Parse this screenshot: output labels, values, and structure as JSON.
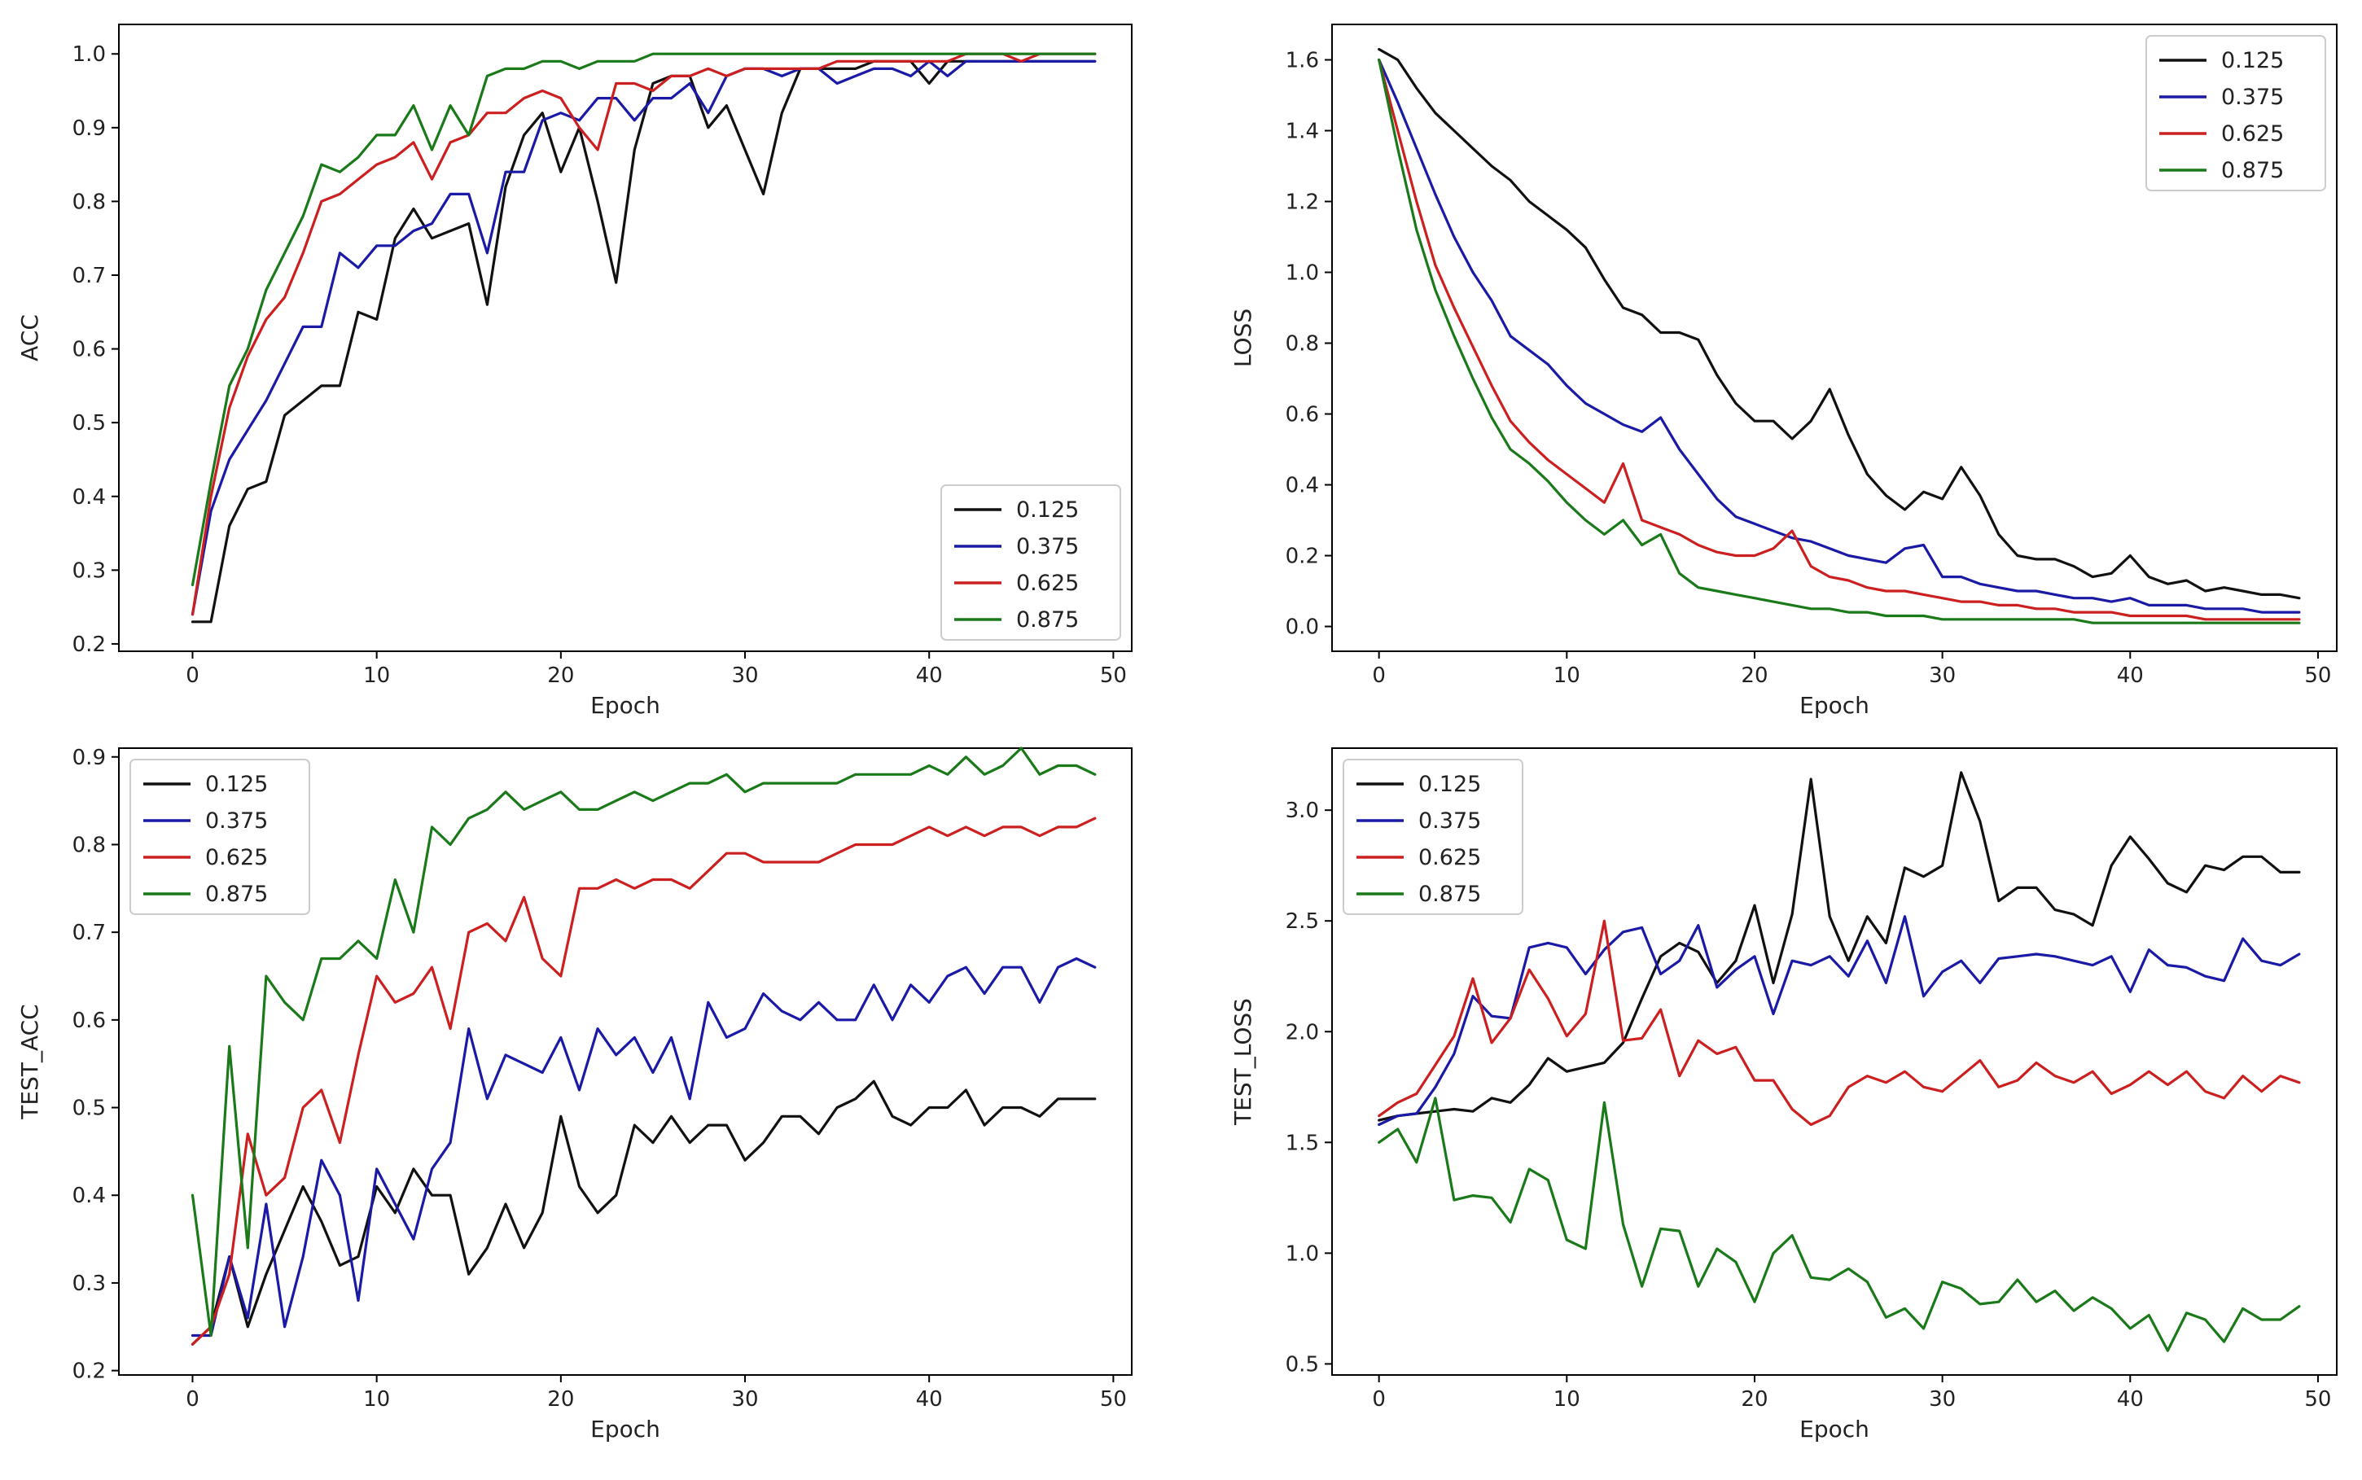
{
  "colors": {
    "c0.125": "#111111",
    "c0.375": "#1a1aa6",
    "c0.625": "#cc2020",
    "c0.875": "#1a7a1a"
  },
  "chart_data": [
    {
      "type": "line",
      "position": "top-left",
      "xlabel": "Epoch",
      "ylabel": "ACC",
      "xlim": [
        -4,
        51
      ],
      "ylim": [
        0.19,
        1.04
      ],
      "xticks": [
        0,
        10,
        20,
        30,
        40,
        50
      ],
      "yticks": [
        0.2,
        0.3,
        0.4,
        0.5,
        0.6,
        0.7,
        0.8,
        0.9,
        1.0
      ],
      "ytick_labels": [
        "0.2",
        "0.3",
        "0.4",
        "0.5",
        "0.6",
        "0.7",
        "0.8",
        "0.9",
        "1.0"
      ],
      "legend_loc": "bottom-right",
      "series": [
        {
          "name": "0.125",
          "color": "#111111",
          "values": [
            0.23,
            0.23,
            0.36,
            0.41,
            0.42,
            0.51,
            0.53,
            0.55,
            0.55,
            0.65,
            0.64,
            0.75,
            0.79,
            0.75,
            0.76,
            0.77,
            0.66,
            0.82,
            0.89,
            0.92,
            0.84,
            0.9,
            0.8,
            0.69,
            0.87,
            0.96,
            0.97,
            0.97,
            0.9,
            0.93,
            0.87,
            0.81,
            0.92,
            0.98,
            0.98,
            0.98,
            0.98,
            0.99,
            0.99,
            0.99,
            0.96,
            0.99,
            0.99,
            0.99,
            0.99,
            0.99,
            0.99,
            0.99,
            0.99,
            0.99
          ]
        },
        {
          "name": "0.375",
          "color": "#1a1aa6",
          "values": [
            0.24,
            0.38,
            0.45,
            0.49,
            0.53,
            0.58,
            0.63,
            0.63,
            0.73,
            0.71,
            0.74,
            0.74,
            0.76,
            0.77,
            0.81,
            0.81,
            0.73,
            0.84,
            0.84,
            0.91,
            0.92,
            0.91,
            0.94,
            0.94,
            0.91,
            0.94,
            0.94,
            0.96,
            0.92,
            0.97,
            0.98,
            0.98,
            0.97,
            0.98,
            0.98,
            0.96,
            0.97,
            0.98,
            0.98,
            0.97,
            0.99,
            0.97,
            0.99,
            0.99,
            0.99,
            0.99,
            0.99,
            0.99,
            0.99,
            0.99
          ]
        },
        {
          "name": "0.625",
          "color": "#cc2020",
          "values": [
            0.24,
            0.4,
            0.52,
            0.59,
            0.64,
            0.67,
            0.73,
            0.8,
            0.81,
            0.83,
            0.85,
            0.86,
            0.88,
            0.83,
            0.88,
            0.89,
            0.92,
            0.92,
            0.94,
            0.95,
            0.94,
            0.9,
            0.87,
            0.96,
            0.96,
            0.95,
            0.97,
            0.97,
            0.98,
            0.97,
            0.98,
            0.98,
            0.98,
            0.98,
            0.98,
            0.99,
            0.99,
            0.99,
            0.99,
            0.99,
            0.99,
            0.99,
            1.0,
            1.0,
            1.0,
            0.99,
            1.0,
            1.0,
            1.0,
            1.0
          ]
        },
        {
          "name": "0.875",
          "color": "#1a7a1a",
          "values": [
            0.28,
            0.42,
            0.55,
            0.6,
            0.68,
            0.73,
            0.78,
            0.85,
            0.84,
            0.86,
            0.89,
            0.89,
            0.93,
            0.87,
            0.93,
            0.89,
            0.97,
            0.98,
            0.98,
            0.99,
            0.99,
            0.98,
            0.99,
            0.99,
            0.99,
            1.0,
            1.0,
            1.0,
            1.0,
            1.0,
            1.0,
            1.0,
            1.0,
            1.0,
            1.0,
            1.0,
            1.0,
            1.0,
            1.0,
            1.0,
            1.0,
            1.0,
            1.0,
            1.0,
            1.0,
            1.0,
            1.0,
            1.0,
            1.0,
            1.0
          ]
        }
      ]
    },
    {
      "type": "line",
      "position": "top-right",
      "xlabel": "Epoch",
      "ylabel": "LOSS",
      "xlim": [
        -2.5,
        51
      ],
      "ylim": [
        -0.07,
        1.7
      ],
      "xticks": [
        0,
        10,
        20,
        30,
        40,
        50
      ],
      "yticks": [
        0.0,
        0.2,
        0.4,
        0.6,
        0.8,
        1.0,
        1.2,
        1.4,
        1.6
      ],
      "ytick_labels": [
        "0.0",
        "0.2",
        "0.4",
        "0.6",
        "0.8",
        "1.0",
        "1.2",
        "1.4",
        "1.6"
      ],
      "legend_loc": "top-right",
      "series": [
        {
          "name": "0.125",
          "color": "#111111",
          "values": [
            1.63,
            1.6,
            1.52,
            1.45,
            1.4,
            1.35,
            1.3,
            1.26,
            1.2,
            1.16,
            1.12,
            1.07,
            0.98,
            0.9,
            0.88,
            0.83,
            0.83,
            0.81,
            0.71,
            0.63,
            0.58,
            0.58,
            0.53,
            0.58,
            0.67,
            0.54,
            0.43,
            0.37,
            0.33,
            0.38,
            0.36,
            0.45,
            0.37,
            0.26,
            0.2,
            0.19,
            0.19,
            0.17,
            0.14,
            0.15,
            0.2,
            0.14,
            0.12,
            0.13,
            0.1,
            0.11,
            0.1,
            0.09,
            0.09,
            0.08
          ]
        },
        {
          "name": "0.375",
          "color": "#1a1aa6",
          "values": [
            1.6,
            1.48,
            1.35,
            1.22,
            1.1,
            1.0,
            0.92,
            0.82,
            0.78,
            0.74,
            0.68,
            0.63,
            0.6,
            0.57,
            0.55,
            0.59,
            0.5,
            0.43,
            0.36,
            0.31,
            0.29,
            0.27,
            0.25,
            0.24,
            0.22,
            0.2,
            0.19,
            0.18,
            0.22,
            0.23,
            0.14,
            0.14,
            0.12,
            0.11,
            0.1,
            0.1,
            0.09,
            0.08,
            0.08,
            0.07,
            0.08,
            0.06,
            0.06,
            0.06,
            0.05,
            0.05,
            0.05,
            0.04,
            0.04,
            0.04
          ]
        },
        {
          "name": "0.625",
          "color": "#cc2020",
          "values": [
            1.6,
            1.4,
            1.2,
            1.02,
            0.9,
            0.79,
            0.68,
            0.58,
            0.52,
            0.47,
            0.43,
            0.39,
            0.35,
            0.46,
            0.3,
            0.28,
            0.26,
            0.23,
            0.21,
            0.2,
            0.2,
            0.22,
            0.27,
            0.17,
            0.14,
            0.13,
            0.11,
            0.1,
            0.1,
            0.09,
            0.08,
            0.07,
            0.07,
            0.06,
            0.06,
            0.05,
            0.05,
            0.04,
            0.04,
            0.04,
            0.03,
            0.03,
            0.03,
            0.03,
            0.02,
            0.02,
            0.02,
            0.02,
            0.02,
            0.02
          ]
        },
        {
          "name": "0.875",
          "color": "#1a7a1a",
          "values": [
            1.6,
            1.35,
            1.12,
            0.95,
            0.82,
            0.7,
            0.59,
            0.5,
            0.46,
            0.41,
            0.35,
            0.3,
            0.26,
            0.3,
            0.23,
            0.26,
            0.15,
            0.11,
            0.1,
            0.09,
            0.08,
            0.07,
            0.06,
            0.05,
            0.05,
            0.04,
            0.04,
            0.03,
            0.03,
            0.03,
            0.02,
            0.02,
            0.02,
            0.02,
            0.02,
            0.02,
            0.02,
            0.02,
            0.01,
            0.01,
            0.01,
            0.01,
            0.01,
            0.01,
            0.01,
            0.01,
            0.01,
            0.01,
            0.01,
            0.01
          ]
        }
      ]
    },
    {
      "type": "line",
      "position": "bottom-left",
      "xlabel": "Epoch",
      "ylabel": "TEST_ACC",
      "xlim": [
        -4,
        51
      ],
      "ylim": [
        0.195,
        0.91
      ],
      "xticks": [
        0,
        10,
        20,
        30,
        40,
        50
      ],
      "yticks": [
        0.2,
        0.3,
        0.4,
        0.5,
        0.6,
        0.7,
        0.8,
        0.9
      ],
      "ytick_labels": [
        "0.2",
        "0.3",
        "0.4",
        "0.5",
        "0.6",
        "0.7",
        "0.8",
        "0.9"
      ],
      "legend_loc": "top-left",
      "series": [
        {
          "name": "0.125",
          "color": "#111111",
          "values": [
            0.23,
            0.25,
            0.33,
            0.25,
            0.31,
            0.36,
            0.41,
            0.37,
            0.32,
            0.33,
            0.41,
            0.38,
            0.43,
            0.4,
            0.4,
            0.31,
            0.34,
            0.39,
            0.34,
            0.38,
            0.49,
            0.41,
            0.38,
            0.4,
            0.48,
            0.46,
            0.49,
            0.46,
            0.48,
            0.48,
            0.44,
            0.46,
            0.49,
            0.49,
            0.47,
            0.5,
            0.51,
            0.53,
            0.49,
            0.48,
            0.5,
            0.5,
            0.52,
            0.48,
            0.5,
            0.5,
            0.49,
            0.51,
            0.51,
            0.51
          ]
        },
        {
          "name": "0.375",
          "color": "#1a1aa6",
          "values": [
            0.24,
            0.24,
            0.33,
            0.26,
            0.39,
            0.25,
            0.33,
            0.44,
            0.4,
            0.28,
            0.43,
            0.39,
            0.35,
            0.43,
            0.46,
            0.59,
            0.51,
            0.56,
            0.55,
            0.54,
            0.58,
            0.52,
            0.59,
            0.56,
            0.58,
            0.54,
            0.58,
            0.51,
            0.62,
            0.58,
            0.59,
            0.63,
            0.61,
            0.6,
            0.62,
            0.6,
            0.6,
            0.64,
            0.6,
            0.64,
            0.62,
            0.65,
            0.66,
            0.63,
            0.66,
            0.66,
            0.62,
            0.66,
            0.67,
            0.66
          ]
        },
        {
          "name": "0.625",
          "color": "#cc2020",
          "values": [
            0.23,
            0.25,
            0.31,
            0.47,
            0.4,
            0.42,
            0.5,
            0.52,
            0.46,
            0.56,
            0.65,
            0.62,
            0.63,
            0.66,
            0.59,
            0.7,
            0.71,
            0.69,
            0.74,
            0.67,
            0.65,
            0.75,
            0.75,
            0.76,
            0.75,
            0.76,
            0.76,
            0.75,
            0.77,
            0.79,
            0.79,
            0.78,
            0.78,
            0.78,
            0.78,
            0.79,
            0.8,
            0.8,
            0.8,
            0.81,
            0.82,
            0.81,
            0.82,
            0.81,
            0.82,
            0.82,
            0.81,
            0.82,
            0.82,
            0.83
          ]
        },
        {
          "name": "0.875",
          "color": "#1a7a1a",
          "values": [
            0.4,
            0.24,
            0.57,
            0.34,
            0.65,
            0.62,
            0.6,
            0.67,
            0.67,
            0.69,
            0.67,
            0.76,
            0.7,
            0.82,
            0.8,
            0.83,
            0.84,
            0.86,
            0.84,
            0.85,
            0.86,
            0.84,
            0.84,
            0.85,
            0.86,
            0.85,
            0.86,
            0.87,
            0.87,
            0.88,
            0.86,
            0.87,
            0.87,
            0.87,
            0.87,
            0.87,
            0.88,
            0.88,
            0.88,
            0.88,
            0.89,
            0.88,
            0.9,
            0.88,
            0.89,
            0.91,
            0.88,
            0.89,
            0.89,
            0.88
          ]
        }
      ]
    },
    {
      "type": "line",
      "position": "bottom-right",
      "xlabel": "Epoch",
      "ylabel": "TEST_LOSS",
      "xlim": [
        -2.5,
        51
      ],
      "ylim": [
        0.45,
        3.28
      ],
      "xticks": [
        0,
        10,
        20,
        30,
        40,
        50
      ],
      "yticks": [
        0.5,
        1.0,
        1.5,
        2.0,
        2.5,
        3.0
      ],
      "ytick_labels": [
        "0.5",
        "1.0",
        "1.5",
        "2.0",
        "2.5",
        "3.0"
      ],
      "legend_loc": "top-left",
      "series": [
        {
          "name": "0.125",
          "color": "#111111",
          "values": [
            1.6,
            1.62,
            1.63,
            1.64,
            1.65,
            1.64,
            1.7,
            1.68,
            1.76,
            1.88,
            1.82,
            1.84,
            1.86,
            1.95,
            2.15,
            2.34,
            2.4,
            2.36,
            2.22,
            2.32,
            2.57,
            2.22,
            2.53,
            3.14,
            2.52,
            2.32,
            2.52,
            2.4,
            2.74,
            2.7,
            2.75,
            3.17,
            2.95,
            2.59,
            2.65,
            2.65,
            2.55,
            2.53,
            2.48,
            2.75,
            2.88,
            2.78,
            2.67,
            2.63,
            2.75,
            2.73,
            2.79,
            2.79,
            2.72,
            2.72
          ]
        },
        {
          "name": "0.375",
          "color": "#1a1aa6",
          "values": [
            1.58,
            1.62,
            1.63,
            1.75,
            1.9,
            2.16,
            2.07,
            2.06,
            2.38,
            2.4,
            2.38,
            2.26,
            2.37,
            2.45,
            2.47,
            2.26,
            2.32,
            2.48,
            2.2,
            2.28,
            2.34,
            2.08,
            2.32,
            2.3,
            2.34,
            2.25,
            2.41,
            2.22,
            2.52,
            2.16,
            2.27,
            2.32,
            2.22,
            2.33,
            2.34,
            2.35,
            2.34,
            2.32,
            2.3,
            2.34,
            2.18,
            2.37,
            2.3,
            2.29,
            2.25,
            2.23,
            2.42,
            2.32,
            2.3,
            2.35
          ]
        },
        {
          "name": "0.625",
          "color": "#cc2020",
          "values": [
            1.62,
            1.68,
            1.72,
            1.85,
            1.98,
            2.24,
            1.95,
            2.06,
            2.28,
            2.15,
            1.98,
            2.08,
            2.5,
            1.96,
            1.97,
            2.1,
            1.8,
            1.96,
            1.9,
            1.93,
            1.78,
            1.78,
            1.65,
            1.58,
            1.62,
            1.75,
            1.8,
            1.77,
            1.82,
            1.75,
            1.73,
            1.8,
            1.87,
            1.75,
            1.78,
            1.86,
            1.8,
            1.77,
            1.82,
            1.72,
            1.76,
            1.82,
            1.76,
            1.82,
            1.73,
            1.7,
            1.8,
            1.73,
            1.8,
            1.77
          ]
        },
        {
          "name": "0.875",
          "color": "#1a7a1a",
          "values": [
            1.5,
            1.56,
            1.41,
            1.7,
            1.24,
            1.26,
            1.25,
            1.14,
            1.38,
            1.33,
            1.06,
            1.02,
            1.68,
            1.13,
            0.85,
            1.11,
            1.1,
            0.85,
            1.02,
            0.96,
            0.78,
            1.0,
            1.08,
            0.89,
            0.88,
            0.93,
            0.87,
            0.71,
            0.75,
            0.66,
            0.87,
            0.84,
            0.77,
            0.78,
            0.88,
            0.78,
            0.83,
            0.74,
            0.8,
            0.75,
            0.66,
            0.72,
            0.56,
            0.73,
            0.7,
            0.6,
            0.75,
            0.7,
            0.7,
            0.76
          ]
        }
      ]
    }
  ]
}
